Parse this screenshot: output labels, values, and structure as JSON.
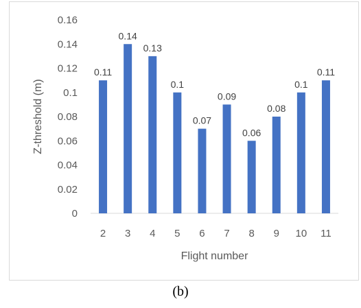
{
  "chart_data": {
    "type": "bar",
    "categories": [
      "2",
      "3",
      "4",
      "5",
      "6",
      "7",
      "8",
      "9",
      "10",
      "11"
    ],
    "values": [
      0.11,
      0.14,
      0.13,
      0.1,
      0.07,
      0.09,
      0.06,
      0.08,
      0.1,
      0.11
    ],
    "data_labels": [
      "0.11",
      "0.14",
      "0.13",
      "0.1",
      "0.07",
      "0.09",
      "0.06",
      "0.08",
      "0.1",
      "0.11"
    ],
    "xlabel": "Flight number",
    "ylabel": "Z-threshold (m)",
    "ylim": [
      0,
      0.16
    ],
    "yticks": [
      0,
      0.02,
      0.04,
      0.06,
      0.08,
      0.1,
      0.12,
      0.14,
      0.16
    ],
    "ytick_labels": [
      "0",
      "0.02",
      "0.04",
      "0.06",
      "0.08",
      "0.1",
      "0.12",
      "0.14",
      "0.16"
    ],
    "grid": false,
    "legend": false,
    "bar_color": "#4472c4"
  },
  "caption": "(b)"
}
